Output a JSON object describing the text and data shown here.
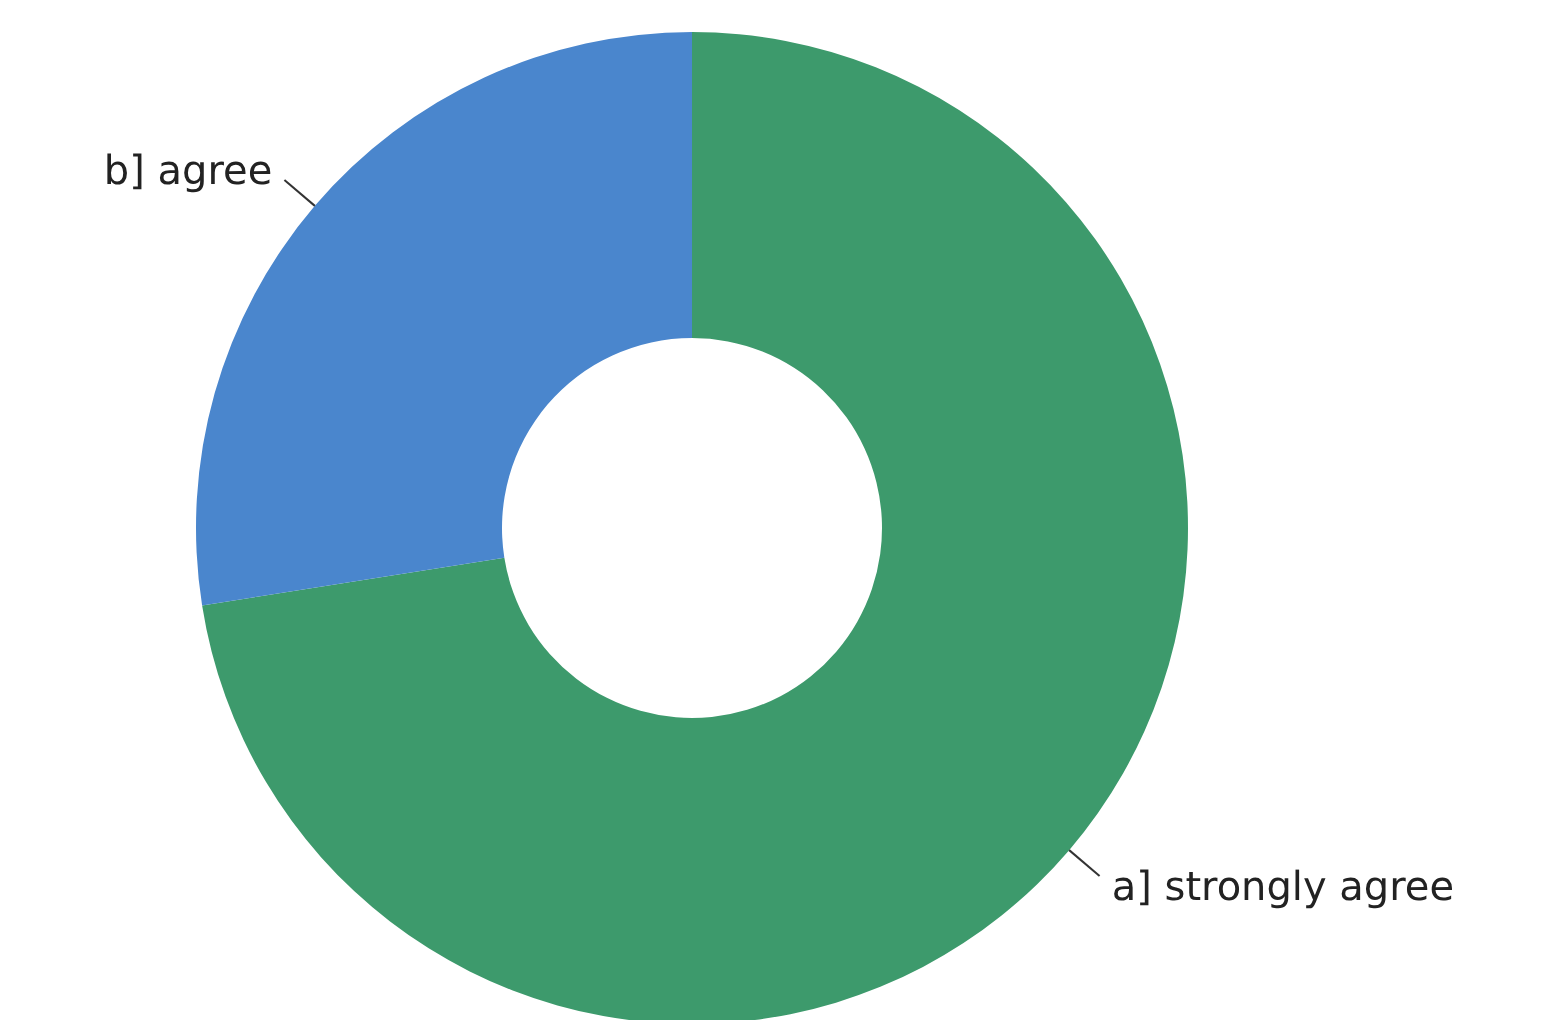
{
  "chart_data": {
    "type": "donut",
    "categories": [
      "a] strongly agree",
      "b] agree"
    ],
    "values": [
      72.5,
      27.5
    ],
    "colors": [
      "#3d9a6c",
      "#4a86cd"
    ],
    "legend": false
  }
}
